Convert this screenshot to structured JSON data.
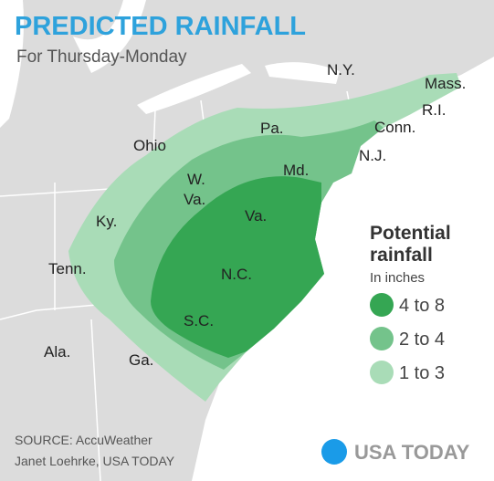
{
  "header": {
    "title": "PREDICTED RAINFALL",
    "subtitle": "For Thursday-Monday"
  },
  "map_labels": [
    "N.Y.",
    "Mass.",
    "R.I.",
    "Conn.",
    "Pa.",
    "N.J.",
    "Ohio",
    "Md.",
    "W.",
    "Va.",
    "Ky.",
    "Va.",
    "Tenn.",
    "N.C.",
    "S.C.",
    "Ala.",
    "Ga."
  ],
  "legend": {
    "title": [
      "Potential",
      "rainfall"
    ],
    "subtitle": "In inches",
    "items": [
      {
        "label": "4 to 8",
        "color": "#35a653"
      },
      {
        "label": "2 to 4",
        "color": "#74c38b"
      },
      {
        "label": "1 to 3",
        "color": "#a9dcb7"
      }
    ]
  },
  "footer": {
    "source": "SOURCE:  AccuWeather",
    "credit": "Janet Loehrke, USA TODAY",
    "logo": "USA TODAY"
  }
}
